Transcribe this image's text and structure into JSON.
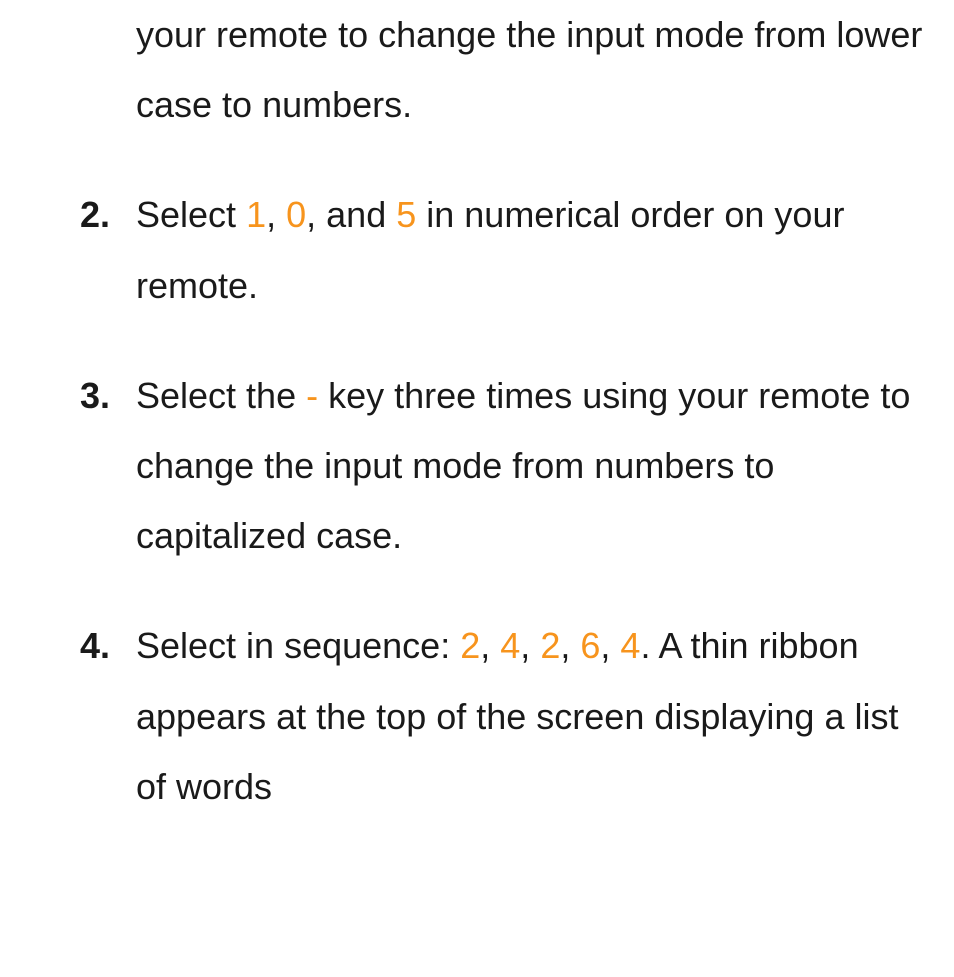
{
  "colors": {
    "text": "#1a1a1a",
    "highlight": "#f7941d",
    "background": "#ffffff"
  },
  "typography": {
    "fontsize_body": 36,
    "line_height": 1.95,
    "num_weight": "bold"
  },
  "items": [
    {
      "num": "",
      "segments": [
        {
          "t": "your remote to change the input mode from lower case to numbers.",
          "hl": false
        }
      ]
    },
    {
      "num": "2.",
      "segments": [
        {
          "t": "Select ",
          "hl": false
        },
        {
          "t": "1",
          "hl": true
        },
        {
          "t": ", ",
          "hl": false
        },
        {
          "t": "0",
          "hl": true
        },
        {
          "t": ", and ",
          "hl": false
        },
        {
          "t": "5",
          "hl": true
        },
        {
          "t": " in numerical order on your remote.",
          "hl": false
        }
      ]
    },
    {
      "num": "3.",
      "segments": [
        {
          "t": "Select the ",
          "hl": false
        },
        {
          "t": "-",
          "hl": true
        },
        {
          "t": " key three times using your remote to change the input mode from numbers to capitalized case.",
          "hl": false
        }
      ]
    },
    {
      "num": "4.",
      "segments": [
        {
          "t": "Select in sequence: ",
          "hl": false
        },
        {
          "t": "2",
          "hl": true
        },
        {
          "t": ", ",
          "hl": false
        },
        {
          "t": "4",
          "hl": true
        },
        {
          "t": ", ",
          "hl": false
        },
        {
          "t": "2",
          "hl": true
        },
        {
          "t": ", ",
          "hl": false
        },
        {
          "t": "6",
          "hl": true
        },
        {
          "t": ", ",
          "hl": false
        },
        {
          "t": "4",
          "hl": true
        },
        {
          "t": ". A thin ribbon appears at the top of the screen displaying a list of words",
          "hl": false
        }
      ]
    }
  ]
}
